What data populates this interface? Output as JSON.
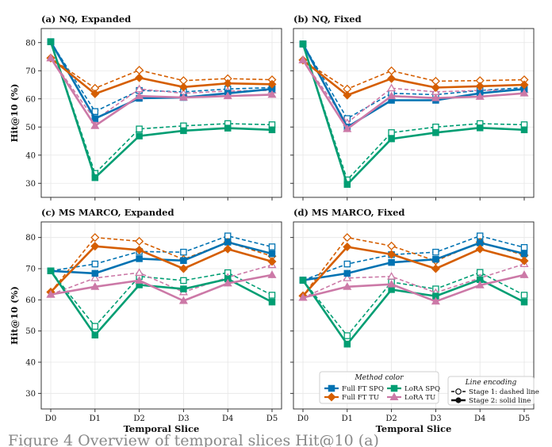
{
  "colors": {
    "Full FT SPQ": "#0072b2",
    "Full FT TU": "#d55e00",
    "LoRA SPQ": "#009e73",
    "LoRA TU": "#cc79a7"
  },
  "shared": {
    "xlabel": "Temporal Slice",
    "ylabel": "Hit@10 (%)",
    "categories": [
      "D0",
      "D1",
      "D2",
      "D3",
      "D4",
      "D5"
    ]
  },
  "legend_method": {
    "title": "Method color",
    "items": [
      "Full FT SPQ",
      "Full FT TU",
      "LoRA SPQ",
      "LoRA TU"
    ]
  },
  "legend_line": {
    "title": "Line encoding",
    "items": [
      "Stage 1: dashed line",
      "Stage 2: solid line"
    ]
  },
  "caption_fragment": "Figure 4  Overview of temporal slices Hit@10 (a)",
  "chart_data": [
    {
      "type": "line",
      "title": "(a) NQ, Expanded",
      "categories": [
        "D0",
        "D1",
        "D2",
        "D3",
        "D4",
        "D5"
      ],
      "ylim": [
        25,
        85
      ],
      "yticks": [
        30,
        40,
        50,
        60,
        70,
        80
      ],
      "grid": true,
      "series": [
        {
          "name": "Full FT SPQ",
          "stage": 1,
          "values": [
            80.3,
            55.5,
            63.0,
            62.5,
            63.5,
            64.0
          ]
        },
        {
          "name": "Full FT SPQ",
          "stage": 2,
          "values": [
            80.3,
            53.0,
            60.2,
            60.5,
            62.0,
            63.5
          ]
        },
        {
          "name": "Full FT TU",
          "stage": 1,
          "values": [
            74.5,
            63.8,
            70.2,
            66.5,
            67.2,
            66.8
          ]
        },
        {
          "name": "Full FT TU",
          "stage": 2,
          "values": [
            74.5,
            61.8,
            67.5,
            64.2,
            65.5,
            65.2
          ]
        },
        {
          "name": "LoRA SPQ",
          "stage": 1,
          "values": [
            80.3,
            33.5,
            49.3,
            50.4,
            51.2,
            50.8
          ]
        },
        {
          "name": "LoRA SPQ",
          "stage": 2,
          "values": [
            80.3,
            32.0,
            46.8,
            48.7,
            49.6,
            49.0
          ]
        },
        {
          "name": "LoRA TU",
          "stage": 1,
          "values": [
            74.5,
            52.5,
            63.5,
            62.0,
            62.8,
            63.0
          ]
        },
        {
          "name": "LoRA TU",
          "stage": 2,
          "values": [
            74.5,
            50.4,
            61.0,
            60.5,
            61.0,
            61.5
          ]
        }
      ]
    },
    {
      "type": "line",
      "title": "(b) NQ, Fixed",
      "categories": [
        "D0",
        "D1",
        "D2",
        "D3",
        "D4",
        "D5"
      ],
      "ylim": [
        25,
        85
      ],
      "yticks": [
        30,
        40,
        50,
        60,
        70,
        80
      ],
      "grid": true,
      "series": [
        {
          "name": "Full FT SPQ",
          "stage": 1,
          "values": [
            79.5,
            53.0,
            62.0,
            61.5,
            63.0,
            64.0
          ]
        },
        {
          "name": "Full FT SPQ",
          "stage": 2,
          "values": [
            79.5,
            50.0,
            59.5,
            59.5,
            62.0,
            63.5
          ]
        },
        {
          "name": "Full FT TU",
          "stage": 1,
          "values": [
            73.8,
            63.5,
            70.0,
            66.3,
            66.5,
            66.8
          ]
        },
        {
          "name": "Full FT TU",
          "stage": 2,
          "values": [
            73.8,
            61.3,
            67.2,
            64.0,
            64.5,
            65.0
          ]
        },
        {
          "name": "LoRA SPQ",
          "stage": 1,
          "values": [
            79.5,
            31.2,
            48.0,
            50.0,
            51.2,
            50.8
          ]
        },
        {
          "name": "LoRA SPQ",
          "stage": 2,
          "values": [
            79.5,
            29.6,
            45.8,
            48.0,
            49.7,
            49.0
          ]
        },
        {
          "name": "LoRA TU",
          "stage": 1,
          "values": [
            73.8,
            51.5,
            63.8,
            62.5,
            63.0,
            63.2
          ]
        },
        {
          "name": "LoRA TU",
          "stage": 2,
          "values": [
            73.8,
            49.3,
            61.0,
            60.3,
            60.8,
            62.0
          ]
        }
      ]
    },
    {
      "type": "line",
      "title": "(c) MS MARCO, Expanded",
      "categories": [
        "D0",
        "D1",
        "D2",
        "D3",
        "D4",
        "D5"
      ],
      "ylim": [
        25,
        85
      ],
      "yticks": [
        30,
        40,
        50,
        60,
        70,
        80
      ],
      "grid": true,
      "series": [
        {
          "name": "Full FT SPQ",
          "stage": 1,
          "values": [
            69.3,
            71.5,
            75.5,
            75.3,
            80.5,
            77.0
          ]
        },
        {
          "name": "Full FT SPQ",
          "stage": 2,
          "values": [
            69.3,
            68.5,
            73.2,
            72.6,
            78.5,
            74.8
          ]
        },
        {
          "name": "Full FT TU",
          "stage": 1,
          "values": [
            62.5,
            80.0,
            78.8,
            73.0,
            78.5,
            74.0
          ]
        },
        {
          "name": "Full FT TU",
          "stage": 2,
          "values": [
            62.5,
            77.2,
            76.0,
            70.0,
            76.3,
            72.3
          ]
        },
        {
          "name": "LoRA SPQ",
          "stage": 1,
          "values": [
            69.3,
            51.5,
            67.5,
            66.2,
            68.7,
            61.5
          ]
        },
        {
          "name": "LoRA SPQ",
          "stage": 2,
          "values": [
            69.3,
            48.7,
            64.8,
            63.5,
            66.7,
            59.3
          ]
        },
        {
          "name": "LoRA TU",
          "stage": 1,
          "values": [
            61.7,
            67.0,
            68.7,
            62.5,
            67.2,
            71.2
          ]
        },
        {
          "name": "LoRA TU",
          "stage": 2,
          "values": [
            61.7,
            64.2,
            66.2,
            59.7,
            65.3,
            68.0
          ]
        }
      ]
    },
    {
      "type": "line",
      "title": "(d) MS MARCO, Fixed",
      "categories": [
        "D0",
        "D1",
        "D2",
        "D3",
        "D4",
        "D5"
      ],
      "ylim": [
        25,
        85
      ],
      "yticks": [
        30,
        40,
        50,
        60,
        70,
        80
      ],
      "grid": true,
      "series": [
        {
          "name": "Full FT SPQ",
          "stage": 1,
          "values": [
            66.3,
            71.5,
            74.5,
            75.3,
            80.5,
            76.8
          ]
        },
        {
          "name": "Full FT SPQ",
          "stage": 2,
          "values": [
            66.3,
            68.5,
            72.0,
            73.0,
            78.3,
            74.8
          ]
        },
        {
          "name": "Full FT TU",
          "stage": 1,
          "values": [
            61.3,
            80.0,
            77.3,
            72.5,
            78.5,
            74.3
          ]
        },
        {
          "name": "Full FT TU",
          "stage": 2,
          "values": [
            61.3,
            77.0,
            74.6,
            70.0,
            76.3,
            72.5
          ]
        },
        {
          "name": "LoRA SPQ",
          "stage": 1,
          "values": [
            66.3,
            48.5,
            65.7,
            63.5,
            68.8,
            61.5
          ]
        },
        {
          "name": "LoRA SPQ",
          "stage": 2,
          "values": [
            66.3,
            45.8,
            63.3,
            61.2,
            66.5,
            59.3
          ]
        },
        {
          "name": "LoRA TU",
          "stage": 1,
          "values": [
            60.7,
            67.0,
            67.5,
            62.3,
            67.0,
            71.5
          ]
        },
        {
          "name": "LoRA TU",
          "stage": 2,
          "values": [
            60.7,
            64.2,
            65.0,
            59.5,
            64.7,
            68.0
          ]
        }
      ]
    }
  ]
}
